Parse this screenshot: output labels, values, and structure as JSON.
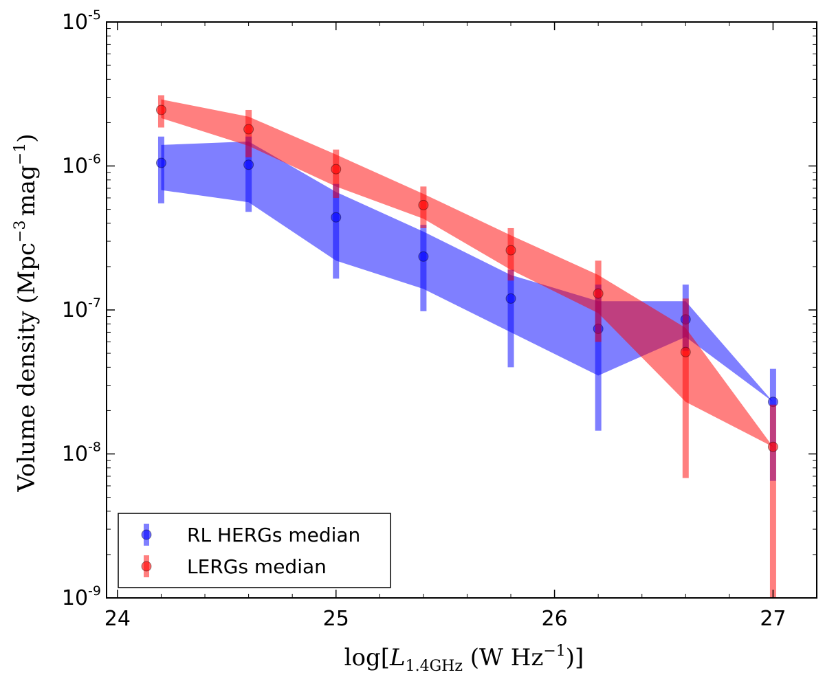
{
  "chart_data": {
    "type": "line",
    "title": "",
    "xlabel": {
      "prefix": "log[",
      "L": "L",
      "sub": "1.4GHz",
      "unit_open": " (W Hz",
      "unit_exp": "−1",
      "unit_close": ")]"
    },
    "ylabel": {
      "main": "Volume density (Mpc",
      "exp1": "−3",
      "mid": "mag",
      "exp2": "−1",
      "close": ")"
    },
    "xlim": [
      23.95,
      27.2
    ],
    "ylim_log10": [
      -9,
      -5
    ],
    "y_scale": "log",
    "x_ticks": [
      24,
      25,
      26,
      27
    ],
    "x_tick_labels": [
      "24",
      "25",
      "26",
      "27"
    ],
    "y_ticks_log10": [
      -9,
      -8,
      -7,
      -6,
      -5
    ],
    "y_tick_labels": [
      {
        "base": "10",
        "exp": "-9"
      },
      {
        "base": "10",
        "exp": "-8"
      },
      {
        "base": "10",
        "exp": "-7"
      },
      {
        "base": "10",
        "exp": "-6"
      },
      {
        "base": "10",
        "exp": "-5"
      }
    ],
    "legend_position": "lower-left",
    "series": [
      {
        "name": "RL HERGs median",
        "color": "#0000ff",
        "x": [
          24.2,
          24.6,
          25.0,
          25.4,
          25.8,
          26.2,
          26.6,
          27.0
        ],
        "median": [
          1.05e-06,
          1.02e-06,
          4.4e-07,
          2.35e-07,
          1.2e-07,
          7.4e-08,
          8.6e-08,
          2.3e-08
        ],
        "band_low": [
          6.8e-07,
          5.6e-07,
          2.2e-07,
          1.4e-07,
          7e-08,
          3.5e-08,
          6.5e-08,
          2.3e-08
        ],
        "band_high": [
          1.4e-06,
          1.48e-06,
          6.6e-07,
          3.5e-07,
          1.75e-07,
          1.15e-07,
          1.15e-07,
          2.3e-08
        ],
        "err_low": [
          5.5e-07,
          4.8e-07,
          1.65e-07,
          9.8e-08,
          4e-08,
          1.45e-08,
          5.2e-08,
          6.5e-09
        ],
        "err_high": [
          1.6e-06,
          1.6e-06,
          7.5e-07,
          3.9e-07,
          1.9e-07,
          1.5e-07,
          1.5e-07,
          3.9e-08
        ]
      },
      {
        "name": "LERGs median",
        "color": "#ff0000",
        "x": [
          24.2,
          24.6,
          25.0,
          25.4,
          25.8,
          26.2,
          26.6,
          27.0
        ],
        "median": [
          2.45e-06,
          1.8e-06,
          9.5e-07,
          5.35e-07,
          2.6e-07,
          1.3e-07,
          5.1e-08,
          1.12e-08
        ],
        "band_low": [
          2.15e-06,
          1.38e-06,
          7.2e-07,
          4.3e-07,
          1.9e-07,
          9.5e-08,
          2.3e-08,
          1.12e-08
        ],
        "band_high": [
          2.9e-06,
          2.2e-06,
          1.2e-06,
          6.4e-07,
          3.3e-07,
          1.75e-07,
          7.5e-08,
          1.12e-08
        ],
        "err_low": [
          1.85e-06,
          1.15e-06,
          6e-07,
          3.7e-07,
          1.6e-07,
          6e-08,
          6.8e-09,
          1e-09
        ],
        "err_high": [
          3.1e-06,
          2.45e-06,
          1.3e-06,
          7.2e-07,
          3.7e-07,
          2.2e-07,
          1.2e-07,
          2.2e-08
        ]
      }
    ]
  }
}
